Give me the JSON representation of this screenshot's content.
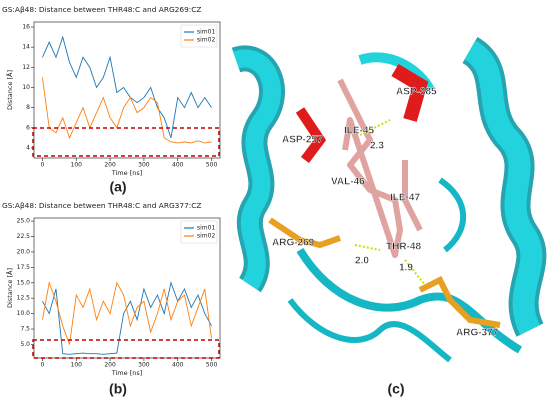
{
  "chart_data": [
    {
      "type": "line",
      "title": "GS:Aβ48: Distance between THR48:C and ARG269:CZ",
      "x_label": "Time [ns]",
      "y_label": "Distance [Å]",
      "x": [
        0,
        20,
        40,
        60,
        80,
        100,
        120,
        140,
        160,
        180,
        200,
        220,
        240,
        260,
        280,
        300,
        320,
        340,
        360,
        380,
        400,
        420,
        440,
        460,
        480,
        500
      ],
      "series": [
        {
          "name": "sim01",
          "color": "#1f77b4",
          "values": [
            13,
            14.5,
            13,
            15,
            12.5,
            11,
            13,
            12,
            10,
            11,
            13,
            9.5,
            10,
            9,
            8.5,
            9,
            10,
            8,
            7,
            5,
            9,
            8,
            9.5,
            8,
            9,
            8
          ]
        },
        {
          "name": "sim02",
          "color": "#ff7f0e",
          "values": [
            11,
            6,
            5.5,
            7,
            5,
            6.5,
            8,
            6,
            7.5,
            9,
            7,
            6,
            8,
            9,
            7.5,
            8,
            9,
            8.5,
            5,
            4.6,
            4.5,
            4.6,
            4.5,
            4.7,
            4.5,
            4.6
          ]
        }
      ],
      "xlim": [
        -25,
        525
      ],
      "xticks": [
        0,
        100,
        200,
        300,
        400,
        500
      ],
      "ylim": [
        3,
        16.5
      ],
      "yticks": [
        4,
        6,
        8,
        10,
        12,
        14,
        16
      ],
      "legend": "upper right"
    },
    {
      "type": "line",
      "title": "GS:Aβ48: Distance between THR48:C and ARG377:CZ",
      "x_label": "Time [ns]",
      "y_label": "Distance [Å]",
      "x": [
        0,
        20,
        40,
        60,
        80,
        100,
        120,
        140,
        160,
        180,
        200,
        220,
        240,
        260,
        280,
        300,
        320,
        340,
        360,
        380,
        400,
        420,
        440,
        460,
        480,
        500
      ],
      "series": [
        {
          "name": "sim01",
          "color": "#1f77b4",
          "values": [
            12,
            10,
            14,
            3.5,
            3.4,
            3.5,
            3.6,
            3.5,
            3.5,
            3.4,
            3.5,
            3.6,
            10,
            12,
            9,
            14,
            11,
            13,
            10,
            15,
            12,
            14,
            11,
            13,
            10,
            8
          ]
        },
        {
          "name": "sim02",
          "color": "#ff7f0e",
          "values": [
            9,
            15,
            12,
            8,
            5,
            13,
            11,
            14,
            9,
            12,
            10,
            15,
            13,
            8,
            11,
            12,
            7,
            10,
            14,
            9,
            12,
            13,
            8,
            11,
            14,
            6
          ]
        }
      ],
      "xlim": [
        -25,
        525
      ],
      "xticks": [
        0,
        100,
        200,
        300,
        400,
        500
      ],
      "ylim": [
        2.8,
        25.5
      ],
      "yticks": [
        {
          "value": 5,
          "label": "5.0"
        },
        {
          "value": 7.5,
          "label": "7.5"
        },
        {
          "value": 10,
          "label": "10.0"
        },
        {
          "value": 12.5,
          "label": "12.5"
        },
        {
          "value": 15,
          "label": "15.0"
        },
        {
          "value": 17.5,
          "label": "17.5"
        },
        {
          "value": 20,
          "label": "20.0"
        },
        {
          "value": 22.5,
          "label": "22.5"
        },
        {
          "value": 25,
          "label": "25.0"
        }
      ],
      "legend": "upper right"
    }
  ],
  "panels": [
    "(a)",
    "(b)",
    "(c)"
  ],
  "structure": {
    "labels": [
      "ASP-385",
      "ASP-257",
      "ILE-45",
      "2.3",
      "VAL-46",
      "ILE-47",
      "ARG-269",
      "THR-48",
      "2.0",
      "1.9",
      "ARG-377"
    ]
  }
}
